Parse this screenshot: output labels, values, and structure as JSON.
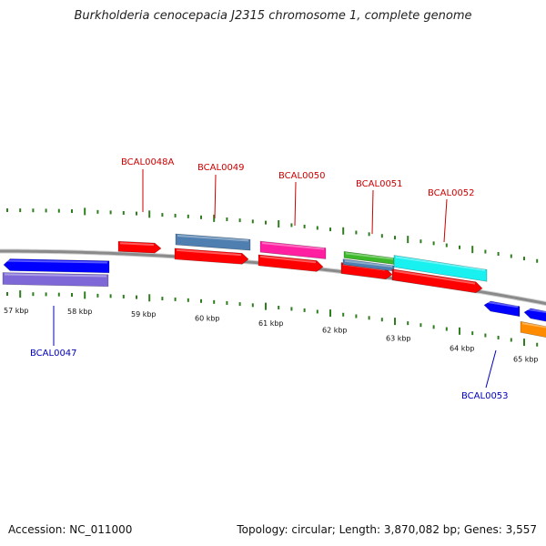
{
  "title": "Burkholderia cenocepacia J2315 chromosome 1, complete genome",
  "footer": {
    "accession": "Accession: NC_011000",
    "summary": "Topology: circular; Length: 3,870,082 bp; Genes: 3,557"
  },
  "colors": {
    "label_forward": "#cc0000",
    "label_reverse": "#0000bb",
    "backbone": "#8a8a8a",
    "tick": "#2e7d1f"
  },
  "kbp_labels": [
    "57 kbp",
    "58 kbp",
    "59 kbp",
    "60 kbp",
    "61 kbp",
    "62 kbp",
    "63 kbp",
    "64 kbp",
    "65 kbp"
  ],
  "gene_labels": [
    {
      "text": "BCAL0048A",
      "strand": "forward"
    },
    {
      "text": "BCAL0049",
      "strand": "forward"
    },
    {
      "text": "BCAL0050",
      "strand": "forward"
    },
    {
      "text": "BCAL0051",
      "strand": "forward"
    },
    {
      "text": "BCAL0052",
      "strand": "forward"
    },
    {
      "text": "BCAL0047",
      "strand": "reverse"
    },
    {
      "text": "BCAL0053",
      "strand": "reverse"
    }
  ],
  "features": [
    {
      "name": "feature-bcal0048a",
      "color": "#ff0000",
      "strand": "forward"
    },
    {
      "name": "feature-bcal0049-gene",
      "color": "#ff0000",
      "strand": "forward"
    },
    {
      "name": "feature-bcal0049-cds",
      "color": "#4f7fb0",
      "strand": "forward"
    },
    {
      "name": "feature-bcal0050-gene",
      "color": "#ff0000",
      "strand": "forward"
    },
    {
      "name": "feature-bcal0050-cds",
      "color": "#ff1fa0",
      "strand": "forward"
    },
    {
      "name": "feature-bcal0051-gene",
      "color": "#ff0000",
      "strand": "forward"
    },
    {
      "name": "feature-bcal0051-cds-a",
      "color": "#3db82a",
      "strand": "forward"
    },
    {
      "name": "feature-bcal0051-cds-b",
      "color": "#4f7fb0",
      "strand": "forward"
    },
    {
      "name": "feature-bcal0052-gene",
      "color": "#ff0000",
      "strand": "forward"
    },
    {
      "name": "feature-bcal0052-cds",
      "color": "#19f0f0",
      "strand": "forward"
    },
    {
      "name": "feature-bcal0047-gene",
      "color": "#0000ff",
      "strand": "reverse"
    },
    {
      "name": "feature-bcal0047-cds",
      "color": "#7e68d8",
      "strand": "reverse"
    },
    {
      "name": "feature-bcal0053-gene",
      "color": "#0000ff",
      "strand": "reverse"
    },
    {
      "name": "feature-next-gene",
      "color": "#0000ff",
      "strand": "reverse"
    },
    {
      "name": "feature-next-cds",
      "color": "#ff8c00",
      "strand": "reverse"
    }
  ]
}
